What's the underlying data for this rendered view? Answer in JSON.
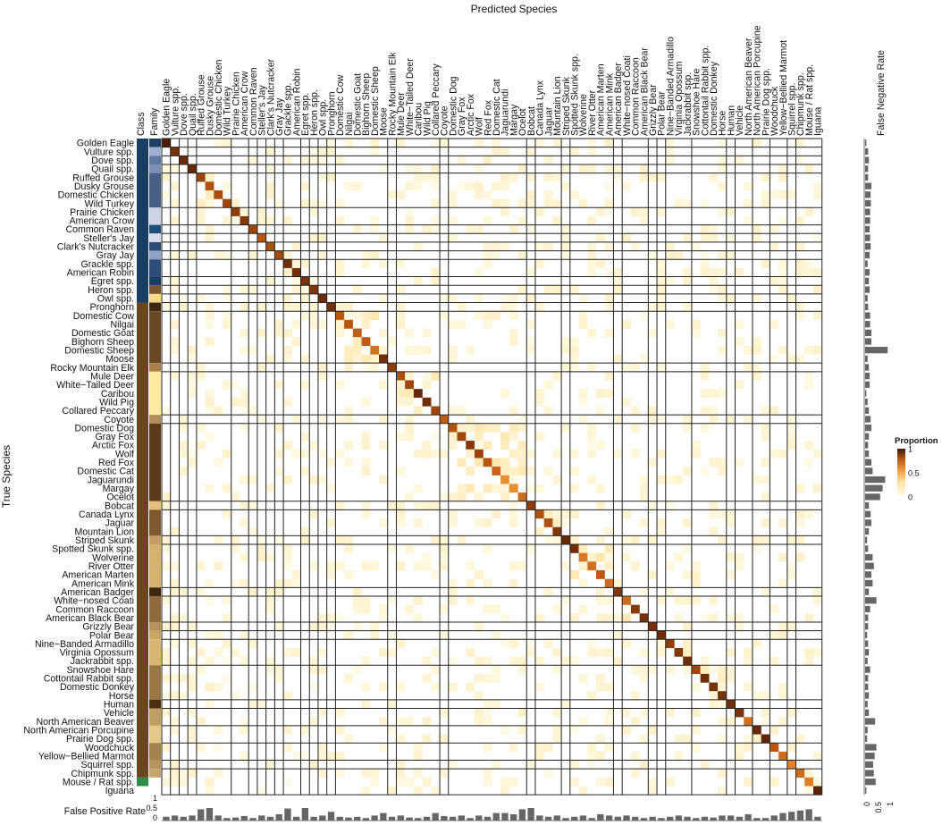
{
  "chart_data": {
    "type": "heatmap",
    "title": "Predicted Species",
    "xlabel": "Predicted Species",
    "ylabel": "True Species",
    "side_columns": [
      "Class",
      "Family"
    ],
    "right_panel_label": "False Negative Rate",
    "bottom_panel_label": "False Positive Rate",
    "panel_ticks": {
      "right": [
        "0",
        "0.5",
        "1"
      ],
      "bottom": [
        "1",
        "0.5",
        "0"
      ]
    },
    "legend": {
      "title": "Proportion",
      "ticks": [
        "1",
        "0.5",
        "0"
      ],
      "low_color": "#fff8dc",
      "high_color": "#4a1a06",
      "position": "right"
    },
    "species": [
      "Golden Eagle",
      "Vulture spp.",
      "Dove spp.",
      "Quail spp.",
      "Ruffed Grouse",
      "Dusky Grouse",
      "Domestic Chicken",
      "Wild Turkey",
      "Prairie Chicken",
      "American Crow",
      "Common Raven",
      "Steller's Jay",
      "Clark's Nutcracker",
      "Gray Jay",
      "Grackle spp.",
      "American Robin",
      "Egret spp.",
      "Heron spp.",
      "Owl spp.",
      "Pronghorn",
      "Domestic Cow",
      "Nilgai",
      "Domestic Goat",
      "Bighorn Sheep",
      "Domestic Sheep",
      "Moose",
      "Rocky Mountain Elk",
      "Mule Deer",
      "White−Tailed Deer",
      "Caribou",
      "Wild Pig",
      "Collared Peccary",
      "Coyote",
      "Domestic Dog",
      "Gray Fox",
      "Arctic Fox",
      "Wolf",
      "Red Fox",
      "Domestic Cat",
      "Jaguarundi",
      "Margay",
      "Ocelot",
      "Bobcat",
      "Canada Lynx",
      "Jaguar",
      "Mountain Lion",
      "Striped Skunk",
      "Spotted Skunk spp.",
      "Wolverine",
      "River Otter",
      "American Marten",
      "American Mink",
      "American Badger",
      "White−nosed Coati",
      "Common Raccoon",
      "American Black Bear",
      "Grizzly Bear",
      "Polar Bear",
      "Nine−Banded Armadillo",
      "Virginia Opossum",
      "Jackrabbit spp.",
      "Snowshoe Hare",
      "Cottontail Rabbit spp.",
      "Domestic Donkey",
      "Horse",
      "Human",
      "Vehicle",
      "North American Beaver",
      "North American Porcupine",
      "Prairie Dog spp.",
      "Woodchuck",
      "Yellow−Bellied Marmot",
      "Squirrel spp.",
      "Chipmunk spp.",
      "Mouse / Rat spp.",
      "Iguana"
    ],
    "family_groups": [
      1,
      1,
      1,
      1,
      4,
      2,
      1,
      1,
      1,
      1,
      2,
      1,
      1,
      1,
      1,
      6,
      1,
      5,
      1,
      9,
      1,
      3,
      1,
      5,
      1,
      3,
      1,
      1,
      3,
      4,
      1,
      2,
      2,
      2,
      1,
      1
    ],
    "class_groups": [
      19,
      55,
      1
    ],
    "class_colors": [
      "#173f66",
      "#6b4420",
      "#2e8b4a"
    ],
    "family_colors": [
      "#1f3f63",
      "#a0aed0",
      "#5f7a9e",
      "#7d8fb5",
      "#485f85",
      "#cfd3e6",
      "#1e4b78",
      "#d7dbe9",
      "#2a4a78",
      "#8ea2c6",
      "#2d4d7a",
      "#1b3d64",
      "#7a5630",
      "#f6d98a",
      "#3e2a12",
      "#6a4a25",
      "#a9804a",
      "#ffeaa0",
      "#b18b58",
      "#5a3a18",
      "#e6c07a",
      "#7f5a30",
      "#c49c5f",
      "#d6b06d",
      "#3d260f",
      "#8f6a3c",
      "#b8915a",
      "#caa463",
      "#dab572",
      "#9b7745",
      "#4a2f12",
      "#bfa062",
      "#e3c888",
      "#a3824e",
      "#b7935f",
      "#c6a56a",
      "#3bb56a",
      "#a9e3b9"
    ],
    "diagonal_proportions": [
      0.99,
      0.92,
      0.94,
      0.95,
      0.86,
      0.82,
      0.83,
      0.85,
      0.88,
      0.9,
      0.85,
      0.8,
      0.82,
      0.84,
      0.93,
      0.93,
      0.92,
      0.9,
      0.94,
      0.93,
      0.8,
      0.8,
      0.77,
      0.78,
      0.7,
      0.93,
      0.88,
      0.82,
      0.85,
      0.95,
      0.93,
      0.85,
      0.78,
      0.81,
      0.85,
      0.9,
      0.86,
      0.8,
      0.75,
      0.6,
      0.6,
      0.72,
      0.88,
      0.82,
      0.82,
      0.9,
      0.95,
      0.93,
      0.68,
      0.7,
      0.79,
      0.72,
      0.9,
      0.72,
      0.89,
      0.92,
      0.92,
      0.94,
      0.88,
      0.9,
      0.93,
      0.85,
      0.93,
      0.92,
      0.92,
      0.93,
      0.91,
      0.7,
      0.95,
      0.96,
      0.8,
      0.72,
      0.63,
      0.72,
      0.65,
      0.97
    ],
    "false_negative_rate": [
      0.05,
      0.12,
      0.15,
      0.12,
      0.12,
      0.25,
      0.22,
      0.23,
      0.2,
      0.2,
      0.18,
      0.2,
      0.22,
      0.18,
      0.1,
      0.18,
      0.15,
      0.18,
      0.1,
      0.12,
      0.2,
      0.2,
      0.25,
      0.25,
      0.9,
      0.1,
      0.15,
      0.18,
      0.18,
      0.05,
      0.1,
      0.15,
      0.22,
      0.25,
      0.15,
      0.12,
      0.15,
      0.25,
      0.3,
      0.8,
      0.7,
      0.6,
      0.15,
      0.22,
      0.25,
      0.15,
      0.08,
      0.12,
      0.3,
      0.35,
      0.25,
      0.3,
      0.15,
      0.45,
      0.2,
      0.12,
      0.12,
      0.08,
      0.12,
      0.15,
      0.1,
      0.2,
      0.12,
      0.12,
      0.15,
      0.1,
      0.15,
      0.4,
      0.1,
      0.08,
      0.45,
      0.38,
      0.32,
      0.35,
      0.42,
      0.05
    ],
    "false_positive_rate": [
      0.15,
      0.2,
      0.15,
      0.2,
      0.45,
      0.5,
      0.2,
      0.1,
      0.12,
      0.18,
      0.1,
      0.2,
      0.15,
      0.25,
      0.48,
      0.15,
      0.5,
      0.15,
      0.2,
      0.35,
      0.15,
      0.12,
      0.15,
      0.1,
      0.2,
      0.3,
      0.15,
      0.2,
      0.12,
      0.1,
      0.15,
      0.3,
      0.18,
      0.15,
      0.2,
      0.1,
      0.2,
      0.15,
      0.3,
      0.3,
      0.25,
      0.45,
      0.5,
      0.2,
      0.15,
      0.2,
      0.1,
      0.15,
      0.2,
      0.1,
      0.25,
      0.2,
      0.15,
      0.2,
      0.15,
      0.1,
      0.15,
      0.1,
      0.15,
      0.2,
      0.15,
      0.1,
      0.15,
      0.12,
      0.2,
      0.2,
      0.15,
      0.25,
      0.1,
      0.1,
      0.2,
      0.3,
      0.35,
      0.4,
      0.45,
      0.15
    ],
    "background_tint_proportion": 0.06
  }
}
